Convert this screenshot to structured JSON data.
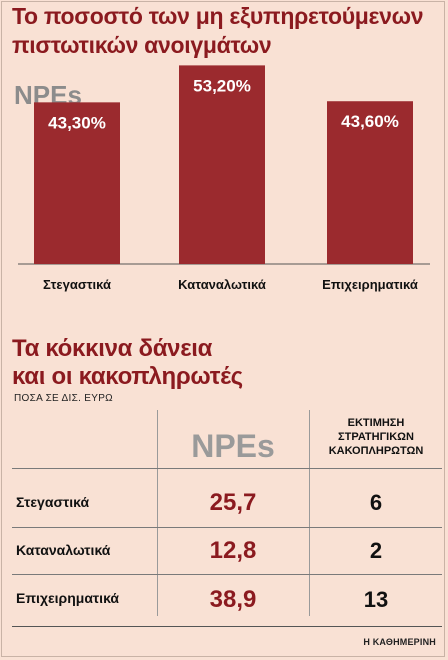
{
  "header": {
    "title_line1": "Το ποσοστό των μη εξυπηρετούμενων",
    "title_line2": "πιστωτικών ανοιγμάτων"
  },
  "chart_data": {
    "type": "bar",
    "subtitle": "NPEs",
    "categories": [
      "Στεγαστικά",
      "Καταναλωτικά",
      "Επιχειρηματικά"
    ],
    "values": [
      43.3,
      53.2,
      43.6
    ],
    "data_labels": [
      "43,30%",
      "53,20%",
      "43,60%"
    ],
    "bar_color": "#9b2a2e",
    "ylim": [
      0,
      60
    ]
  },
  "table": {
    "title_line1": "Τα κόκκινα δάνεια",
    "title_line2": "και οι κακοπληρωτές",
    "units": "ΠΟΣΑ ΣΕ ΔΙΣ. ΕΥΡΩ",
    "col_npe": "NPEs",
    "col_est_line1": "ΕΚΤΙΜΗΣΗ",
    "col_est_line2": "ΣΤΡΑΤΗΓΙΚΩΝ",
    "col_est_line3": "ΚΑΚΟΠΛΗΡΩΤΩΝ",
    "rows": [
      {
        "label": "Στεγαστικά",
        "npe": "25,7",
        "est": "6"
      },
      {
        "label": "Καταναλωτικά",
        "npe": "12,8",
        "est": "2"
      },
      {
        "label": "Επιχειρηματικά",
        "npe": "38,9",
        "est": "13"
      }
    ]
  },
  "footer": {
    "source": "Η ΚΑΘΗΜΕΡΙΝΗ"
  }
}
